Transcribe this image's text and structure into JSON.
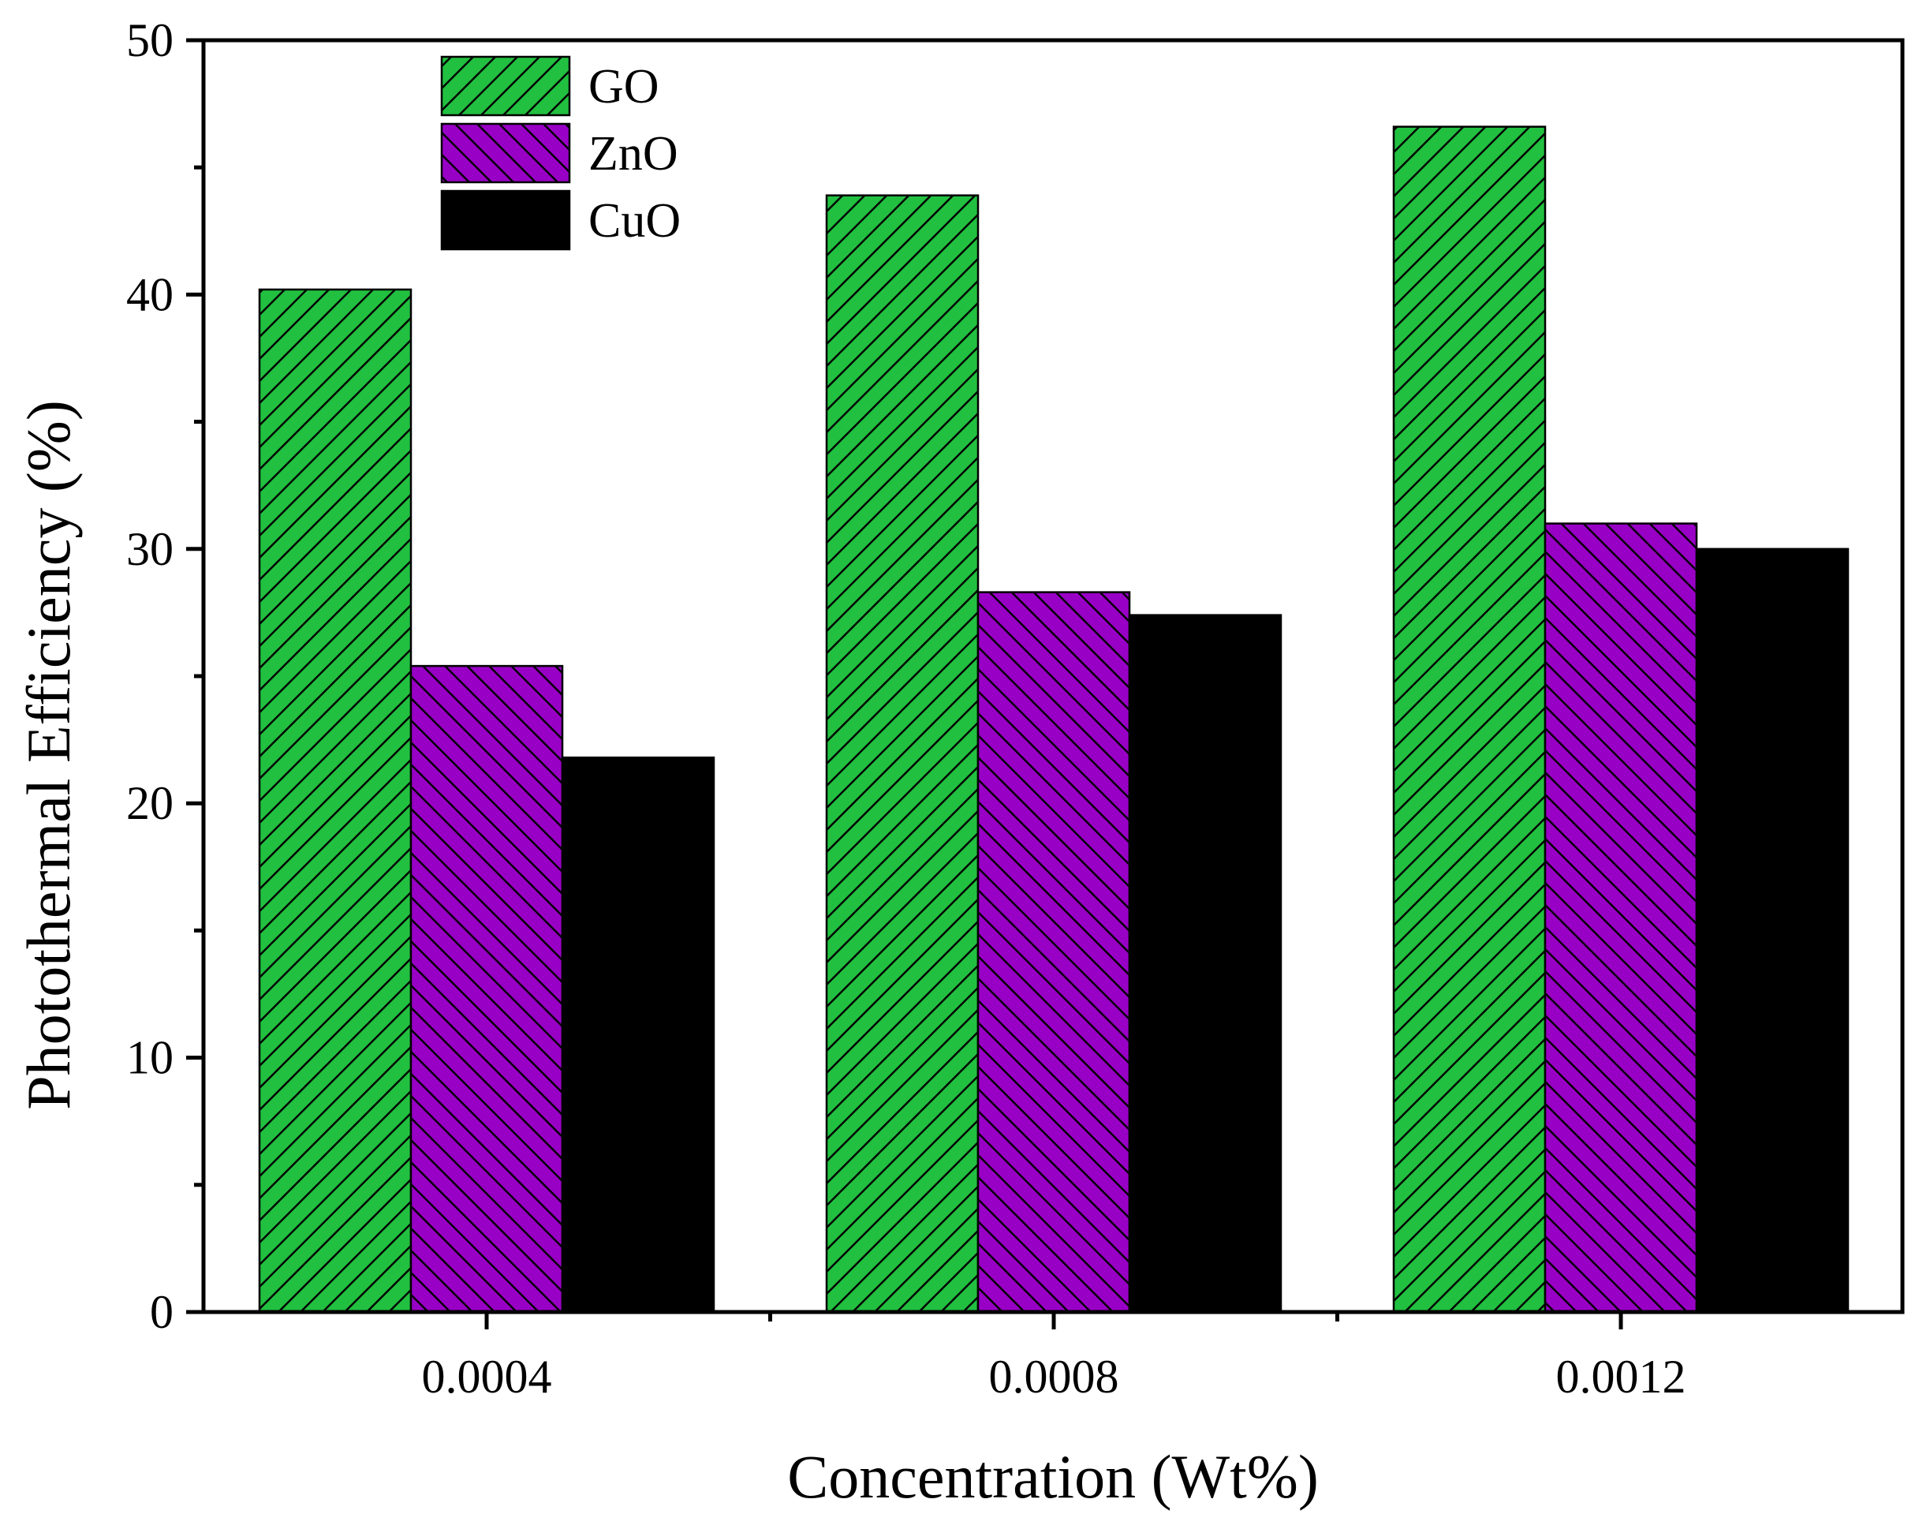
{
  "chart_data": {
    "type": "bar",
    "title": "",
    "xlabel": "Concentration (Wt%)",
    "ylabel": "Photothermal Efficiency (%)",
    "categories": [
      "0.0004",
      "0.0008",
      "0.0012"
    ],
    "ylim": [
      0,
      50
    ],
    "yticks": [
      0,
      10,
      20,
      30,
      40,
      50
    ],
    "grid": false,
    "legend_position": "top-left",
    "series": [
      {
        "name": "GO",
        "values": [
          40.2,
          43.9,
          46.6
        ],
        "color": "#22c040",
        "hatch": "forward"
      },
      {
        "name": "ZnO",
        "values": [
          25.4,
          28.3,
          31.0
        ],
        "color": "#9900c6",
        "hatch": "backward"
      },
      {
        "name": "CuO",
        "values": [
          21.8,
          27.4,
          30.0
        ],
        "color": "#000000",
        "hatch": "none"
      }
    ]
  }
}
